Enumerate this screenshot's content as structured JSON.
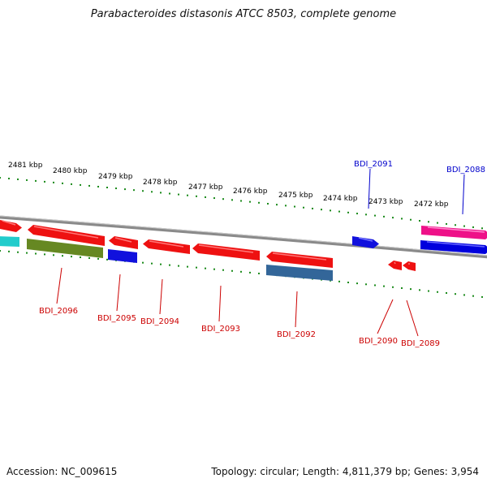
{
  "title": "Parabacteroides distasonis ATCC 8503, complete genome",
  "footer": {
    "accession_text": "Accession: NC_009615",
    "summary_text": "Topology: circular; Length: 4,811,379 bp; Genes: 3,954"
  },
  "colors": {
    "backbone": "#888888",
    "tick": "#1a8a1a",
    "label_red": "#cc0000",
    "label_blue": "#0000cc",
    "kbp_text": "#000000"
  },
  "kbp_labels": [
    "2481 kbp",
    "2480 kbp",
    "2479 kbp",
    "2478 kbp",
    "2477 kbp",
    "2476 kbp",
    "2475 kbp",
    "2474 kbp",
    "2473 kbp",
    "2472 kbp"
  ],
  "genes": [
    {
      "label": "BDI_2096",
      "color": "label_red"
    },
    {
      "label": "BDI_2095",
      "color": "label_red"
    },
    {
      "label": "BDI_2094",
      "color": "label_red"
    },
    {
      "label": "BDI_2093",
      "color": "label_red"
    },
    {
      "label": "BDI_2092",
      "color": "label_red"
    },
    {
      "label": "BDI_2091",
      "color": "label_blue"
    },
    {
      "label": "BDI_2090",
      "color": "label_red"
    },
    {
      "label": "BDI_2089",
      "color": "label_red"
    },
    {
      "label": "BDI_2088",
      "color": "label_blue"
    }
  ]
}
